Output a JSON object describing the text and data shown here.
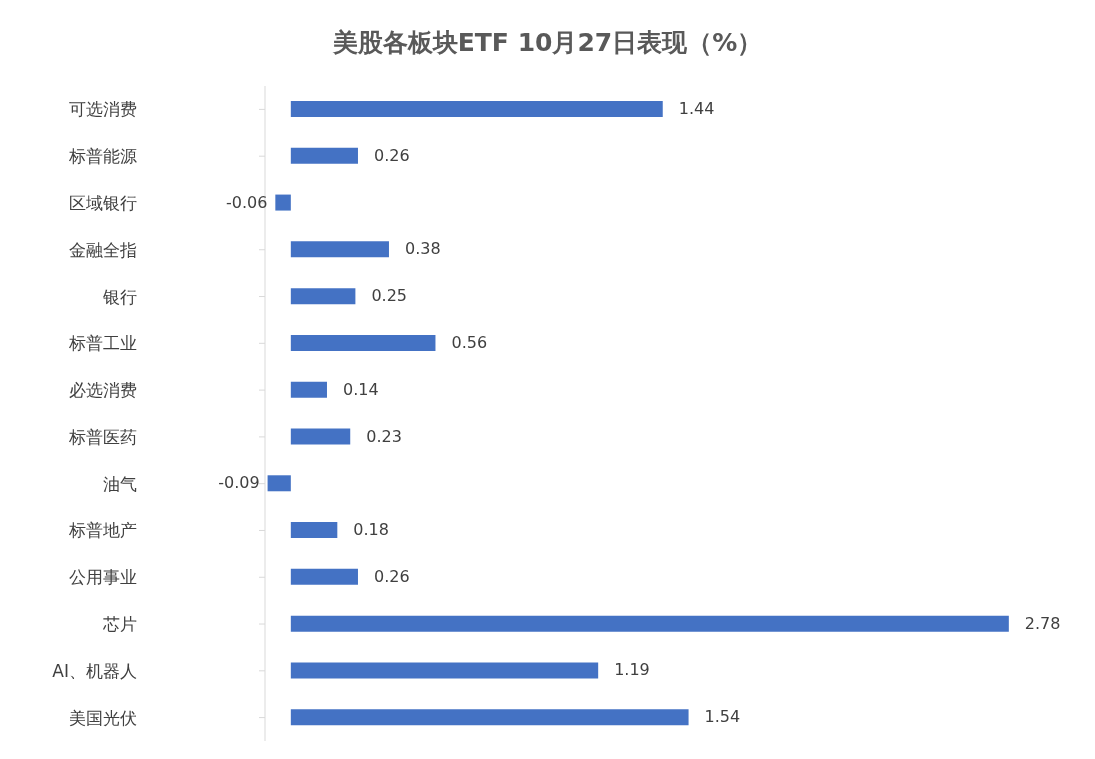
{
  "chart_data": {
    "type": "bar",
    "title": "美股各板块ETF  10月27日表现（%）",
    "orientation": "horizontal",
    "categories": [
      "可选消费",
      "标普能源",
      "区域银行",
      "金融全指",
      "银行",
      "标普工业",
      "必选消费",
      "标普医药",
      "油气",
      "标普地产",
      "公用事业",
      "芯片",
      "AI、机器人",
      "美国光伏"
    ],
    "values": [
      1.44,
      0.26,
      -0.06,
      0.38,
      0.25,
      0.56,
      0.14,
      0.23,
      -0.09,
      0.18,
      0.26,
      2.78,
      1.19,
      1.54
    ],
    "color": "#4472c4",
    "xlim": [
      -0.1,
      2.8
    ],
    "data_labels": true,
    "grid": false,
    "tick_labels": "y"
  }
}
